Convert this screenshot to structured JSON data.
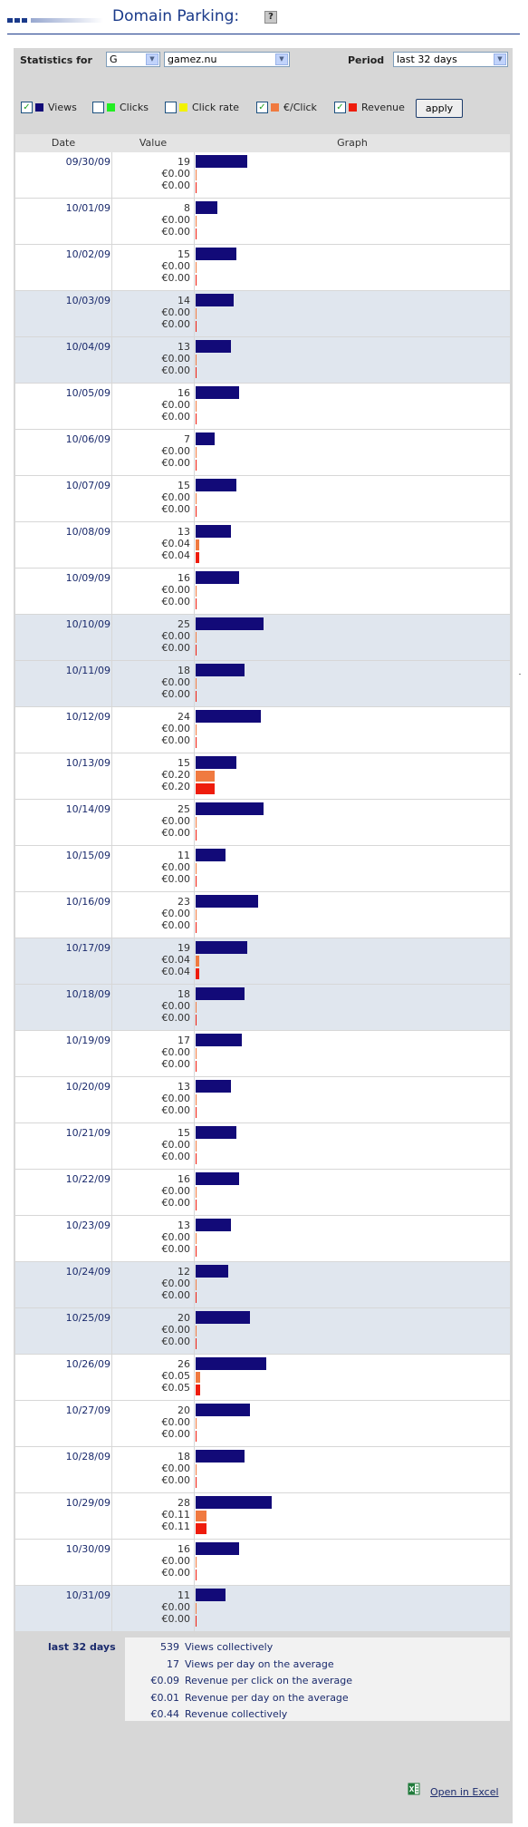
{
  "page": {
    "title": "Domain Parking:",
    "help_label": "?"
  },
  "filters": {
    "statistics_label": "Statistics for",
    "letter_value": "G",
    "domain_value": "gamez.nu",
    "period_label": "Period",
    "period_value": "last 32 days"
  },
  "legend": {
    "views_label": "Views",
    "clicks_label": "Clicks",
    "clickrate_label": "Click rate",
    "euroclick_label": "€/Click",
    "revenue_label": "Revenue",
    "views_checked": true,
    "clicks_checked": false,
    "clickrate_checked": false,
    "euroclick_checked": true,
    "revenue_checked": true,
    "apply_label": "apply",
    "colors": {
      "views": "#120a78",
      "clicks": "#22ee22",
      "clickrate": "#f2f200",
      "euroclick": "#f07a40",
      "revenue": "#ee1c0c"
    }
  },
  "table": {
    "headers": [
      "Date",
      "Value",
      "Graph"
    ],
    "max_views": 28,
    "max_euro": 0.2,
    "rows": [
      {
        "date": "09/30/09",
        "views": 19,
        "epc": "€0.00",
        "rev": "€0.00",
        "epc_num": 0,
        "rev_num": 0,
        "highlight": false
      },
      {
        "date": "10/01/09",
        "views": 8,
        "epc": "€0.00",
        "rev": "€0.00",
        "epc_num": 0,
        "rev_num": 0,
        "highlight": false
      },
      {
        "date": "10/02/09",
        "views": 15,
        "epc": "€0.00",
        "rev": "€0.00",
        "epc_num": 0,
        "rev_num": 0,
        "highlight": false
      },
      {
        "date": "10/03/09",
        "views": 14,
        "epc": "€0.00",
        "rev": "€0.00",
        "epc_num": 0,
        "rev_num": 0,
        "highlight": true
      },
      {
        "date": "10/04/09",
        "views": 13,
        "epc": "€0.00",
        "rev": "€0.00",
        "epc_num": 0,
        "rev_num": 0,
        "highlight": true
      },
      {
        "date": "10/05/09",
        "views": 16,
        "epc": "€0.00",
        "rev": "€0.00",
        "epc_num": 0,
        "rev_num": 0,
        "highlight": false
      },
      {
        "date": "10/06/09",
        "views": 7,
        "epc": "€0.00",
        "rev": "€0.00",
        "epc_num": 0,
        "rev_num": 0,
        "highlight": false
      },
      {
        "date": "10/07/09",
        "views": 15,
        "epc": "€0.00",
        "rev": "€0.00",
        "epc_num": 0,
        "rev_num": 0,
        "highlight": false
      },
      {
        "date": "10/08/09",
        "views": 13,
        "epc": "€0.04",
        "rev": "€0.04",
        "epc_num": 0.04,
        "rev_num": 0.04,
        "highlight": false
      },
      {
        "date": "10/09/09",
        "views": 16,
        "epc": "€0.00",
        "rev": "€0.00",
        "epc_num": 0,
        "rev_num": 0,
        "highlight": false
      },
      {
        "date": "10/10/09",
        "views": 25,
        "epc": "€0.00",
        "rev": "€0.00",
        "epc_num": 0,
        "rev_num": 0,
        "highlight": true
      },
      {
        "date": "10/11/09",
        "views": 18,
        "epc": "€0.00",
        "rev": "€0.00",
        "epc_num": 0,
        "rev_num": 0,
        "highlight": true
      },
      {
        "date": "10/12/09",
        "views": 24,
        "epc": "€0.00",
        "rev": "€0.00",
        "epc_num": 0,
        "rev_num": 0,
        "highlight": false
      },
      {
        "date": "10/13/09",
        "views": 15,
        "epc": "€0.20",
        "rev": "€0.20",
        "epc_num": 0.2,
        "rev_num": 0.2,
        "highlight": false
      },
      {
        "date": "10/14/09",
        "views": 25,
        "epc": "€0.00",
        "rev": "€0.00",
        "epc_num": 0,
        "rev_num": 0,
        "highlight": false
      },
      {
        "date": "10/15/09",
        "views": 11,
        "epc": "€0.00",
        "rev": "€0.00",
        "epc_num": 0,
        "rev_num": 0,
        "highlight": false
      },
      {
        "date": "10/16/09",
        "views": 23,
        "epc": "€0.00",
        "rev": "€0.00",
        "epc_num": 0,
        "rev_num": 0,
        "highlight": false
      },
      {
        "date": "10/17/09",
        "views": 19,
        "epc": "€0.04",
        "rev": "€0.04",
        "epc_num": 0.04,
        "rev_num": 0.04,
        "highlight": true
      },
      {
        "date": "10/18/09",
        "views": 18,
        "epc": "€0.00",
        "rev": "€0.00",
        "epc_num": 0,
        "rev_num": 0,
        "highlight": true
      },
      {
        "date": "10/19/09",
        "views": 17,
        "epc": "€0.00",
        "rev": "€0.00",
        "epc_num": 0,
        "rev_num": 0,
        "highlight": false
      },
      {
        "date": "10/20/09",
        "views": 13,
        "epc": "€0.00",
        "rev": "€0.00",
        "epc_num": 0,
        "rev_num": 0,
        "highlight": false
      },
      {
        "date": "10/21/09",
        "views": 15,
        "epc": "€0.00",
        "rev": "€0.00",
        "epc_num": 0,
        "rev_num": 0,
        "highlight": false
      },
      {
        "date": "10/22/09",
        "views": 16,
        "epc": "€0.00",
        "rev": "€0.00",
        "epc_num": 0,
        "rev_num": 0,
        "highlight": false
      },
      {
        "date": "10/23/09",
        "views": 13,
        "epc": "€0.00",
        "rev": "€0.00",
        "epc_num": 0,
        "rev_num": 0,
        "highlight": false
      },
      {
        "date": "10/24/09",
        "views": 12,
        "epc": "€0.00",
        "rev": "€0.00",
        "epc_num": 0,
        "rev_num": 0,
        "highlight": true
      },
      {
        "date": "10/25/09",
        "views": 20,
        "epc": "€0.00",
        "rev": "€0.00",
        "epc_num": 0,
        "rev_num": 0,
        "highlight": true
      },
      {
        "date": "10/26/09",
        "views": 26,
        "epc": "€0.05",
        "rev": "€0.05",
        "epc_num": 0.05,
        "rev_num": 0.05,
        "highlight": false
      },
      {
        "date": "10/27/09",
        "views": 20,
        "epc": "€0.00",
        "rev": "€0.00",
        "epc_num": 0,
        "rev_num": 0,
        "highlight": false
      },
      {
        "date": "10/28/09",
        "views": 18,
        "epc": "€0.00",
        "rev": "€0.00",
        "epc_num": 0,
        "rev_num": 0,
        "highlight": false
      },
      {
        "date": "10/29/09",
        "views": 28,
        "epc": "€0.11",
        "rev": "€0.11",
        "epc_num": 0.11,
        "rev_num": 0.11,
        "highlight": false
      },
      {
        "date": "10/30/09",
        "views": 16,
        "epc": "€0.00",
        "rev": "€0.00",
        "epc_num": 0,
        "rev_num": 0,
        "highlight": false
      },
      {
        "date": "10/31/09",
        "views": 11,
        "epc": "€0.00",
        "rev": "€0.00",
        "epc_num": 0,
        "rev_num": 0,
        "highlight": true
      }
    ]
  },
  "summary": {
    "label": "last 32 days",
    "lines": [
      {
        "value": "539",
        "text": "Views collectively"
      },
      {
        "value": "17",
        "text": "Views per day on the average"
      },
      {
        "value": "€0.09",
        "text": "Revenue per click on the average"
      },
      {
        "value": "€0.01",
        "text": "Revenue per day on the average"
      },
      {
        "value": "€0.44",
        "text": "Revenue collectively"
      }
    ]
  },
  "footer": {
    "excel_label": "Open in Excel"
  }
}
